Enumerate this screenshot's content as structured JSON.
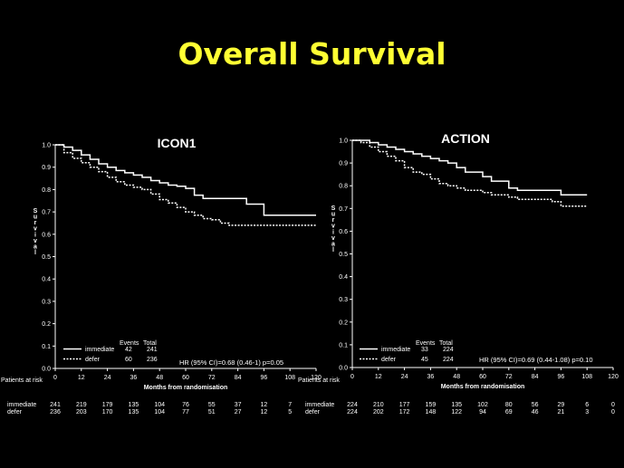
{
  "title": "Overall Survival",
  "colors": {
    "background": "#000000",
    "title": "#ffff33",
    "axis": "#ffffff",
    "line": "#ffffff"
  },
  "chart_data": [
    {
      "type": "line",
      "title": "ICON1",
      "xlabel": "Months from randomisation",
      "ylabel": "Survival",
      "xlim": [
        0,
        120
      ],
      "ylim": [
        0,
        1
      ],
      "x_ticks": [
        0,
        12,
        24,
        36,
        48,
        60,
        72,
        84,
        96,
        108,
        120
      ],
      "y_ticks": [
        "0.0",
        "0.1",
        "0.2",
        "0.3",
        "0.4",
        "0.5",
        "0.6",
        "0.7",
        "0.8",
        "0.9",
        "1.0"
      ],
      "grid": false,
      "hr_text": "HR (95% CI)=0.68 (0.46-1) p=0.05",
      "legend": {
        "position": "bottom-left",
        "header_events": "Events",
        "header_total": "Total",
        "entries": [
          {
            "label": "immediate",
            "style": "solid",
            "events": "42",
            "total": "241"
          },
          {
            "label": "defer",
            "style": "dashed",
            "events": "60",
            "total": "236"
          }
        ]
      },
      "series": [
        {
          "name": "immediate",
          "style": "solid",
          "x": [
            0,
            4,
            8,
            12,
            16,
            20,
            24,
            28,
            32,
            36,
            40,
            44,
            48,
            52,
            56,
            60,
            64,
            68,
            72,
            76,
            80,
            84,
            88,
            92,
            96,
            100,
            104,
            108,
            112,
            116,
            120
          ],
          "y": [
            1.0,
            0.99,
            0.975,
            0.955,
            0.935,
            0.915,
            0.9,
            0.885,
            0.875,
            0.865,
            0.855,
            0.84,
            0.83,
            0.82,
            0.815,
            0.805,
            0.775,
            0.76,
            0.76,
            0.76,
            0.76,
            0.76,
            0.735,
            0.735,
            0.685,
            0.685,
            0.685,
            0.685,
            0.685,
            0.685,
            0.685
          ]
        },
        {
          "name": "defer",
          "style": "dashed",
          "x": [
            0,
            4,
            8,
            12,
            16,
            20,
            24,
            28,
            32,
            36,
            40,
            44,
            48,
            52,
            56,
            60,
            64,
            68,
            72,
            76,
            80,
            84,
            88,
            92,
            96,
            100,
            104,
            108,
            112,
            116,
            120
          ],
          "y": [
            1.0,
            0.965,
            0.94,
            0.92,
            0.9,
            0.88,
            0.855,
            0.835,
            0.82,
            0.81,
            0.8,
            0.78,
            0.755,
            0.74,
            0.72,
            0.7,
            0.685,
            0.67,
            0.665,
            0.65,
            0.64,
            0.64,
            0.64,
            0.64,
            0.64,
            0.64,
            0.64,
            0.64,
            0.64,
            0.64,
            0.64
          ]
        }
      ],
      "risk_table": {
        "label": "Patients at risk",
        "rows": [
          {
            "label": "immediate",
            "values": [
              "241",
              "219",
              "179",
              "135",
              "104",
              "76",
              "55",
              "37",
              "12",
              "7"
            ]
          },
          {
            "label": "defer",
            "values": [
              "236",
              "203",
              "170",
              "135",
              "104",
              "77",
              "51",
              "27",
              "12",
              "5"
            ]
          }
        ]
      }
    },
    {
      "type": "line",
      "title": "ACTION",
      "xlabel": "Months from randomisation",
      "ylabel": "Survival",
      "xlim": [
        0,
        120
      ],
      "ylim": [
        0,
        1
      ],
      "x_ticks": [
        0,
        12,
        24,
        36,
        48,
        60,
        72,
        84,
        96,
        108,
        120
      ],
      "y_ticks": [
        "0.0",
        "0.1",
        "0.2",
        "0.3",
        "0.4",
        "0.5",
        "0.6",
        "0.7",
        "0.8",
        "0.9",
        "1.0"
      ],
      "grid": false,
      "hr_text": "HR (95% CI)=0.69 (0.44-1.08) p=0.10",
      "legend": {
        "position": "bottom-left",
        "header_events": "Events",
        "header_total": "Total",
        "entries": [
          {
            "label": "immediate",
            "style": "solid",
            "events": "33",
            "total": "224"
          },
          {
            "label": "defer",
            "style": "dashed",
            "events": "45",
            "total": "224"
          }
        ]
      },
      "series": [
        {
          "name": "immediate",
          "style": "solid",
          "x": [
            0,
            4,
            8,
            12,
            16,
            20,
            24,
            28,
            32,
            36,
            40,
            44,
            48,
            52,
            56,
            60,
            64,
            68,
            72,
            76,
            80,
            84,
            88,
            92,
            96,
            100,
            104,
            108
          ],
          "y": [
            1.0,
            1.0,
            0.99,
            0.98,
            0.97,
            0.96,
            0.95,
            0.94,
            0.93,
            0.92,
            0.91,
            0.9,
            0.88,
            0.86,
            0.86,
            0.84,
            0.82,
            0.82,
            0.79,
            0.78,
            0.78,
            0.78,
            0.78,
            0.78,
            0.76,
            0.76,
            0.76,
            0.76
          ]
        },
        {
          "name": "defer",
          "style": "dashed",
          "x": [
            0,
            4,
            8,
            12,
            16,
            20,
            24,
            28,
            32,
            36,
            40,
            44,
            48,
            52,
            56,
            60,
            64,
            68,
            72,
            76,
            80,
            84,
            88,
            92,
            96,
            100,
            104,
            108
          ],
          "y": [
            1.0,
            0.99,
            0.97,
            0.95,
            0.93,
            0.91,
            0.88,
            0.86,
            0.85,
            0.83,
            0.81,
            0.8,
            0.79,
            0.78,
            0.78,
            0.77,
            0.76,
            0.76,
            0.75,
            0.74,
            0.74,
            0.74,
            0.74,
            0.73,
            0.71,
            0.71,
            0.71,
            0.71
          ]
        }
      ],
      "risk_table": {
        "label": "Patients at risk",
        "rows": [
          {
            "label": "immediate",
            "values": [
              "224",
              "210",
              "177",
              "159",
              "135",
              "102",
              "80",
              "56",
              "29",
              "6",
              "0"
            ]
          },
          {
            "label": "defer",
            "values": [
              "224",
              "202",
              "172",
              "148",
              "122",
              "94",
              "69",
              "46",
              "21",
              "3",
              "0"
            ]
          }
        ]
      }
    }
  ]
}
